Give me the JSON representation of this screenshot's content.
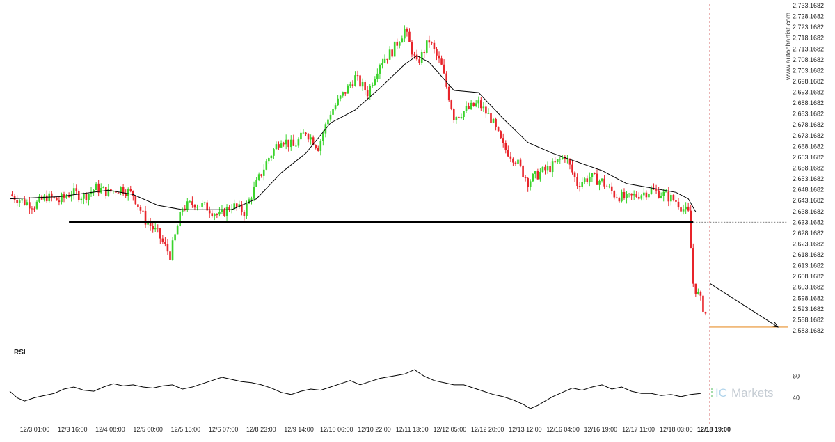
{
  "chart_data": [
    {
      "type": "candlestick",
      "title": "",
      "y_axis_ticks": [
        "2,733.1682",
        "2,728.1682",
        "2,723.1682",
        "2,718.1682",
        "2,713.1682",
        "2,708.1682",
        "2,703.1682",
        "2,698.1682",
        "2,693.1682",
        "2,688.1682",
        "2,683.1682",
        "2,678.1682",
        "2,673.1682",
        "2,668.1682",
        "2,663.1682",
        "2,658.1682",
        "2,653.1682",
        "2,648.1682",
        "2,643.1682",
        "2,638.1682",
        "2,633.1682",
        "2,628.1682",
        "2,623.1682",
        "2,618.1682",
        "2,613.1682",
        "2,608.1682",
        "2,603.1682",
        "2,598.1682",
        "2,593.1682",
        "2,588.1682",
        "2,583.1682"
      ],
      "ylim": [
        2583.1682,
        2733.1682
      ],
      "x_axis_ticks": [
        "12/3 01:00",
        "12/3 16:00",
        "12/4 08:00",
        "12/5 00:00",
        "12/5 15:00",
        "12/6 07:00",
        "12/8 23:00",
        "12/9 14:00",
        "12/10 06:00",
        "12/10 22:00",
        "12/11 13:00",
        "12/12 05:00",
        "12/12 20:00",
        "12/13 12:00",
        "12/16 04:00",
        "12/16 19:00",
        "12/17 11:00",
        "12/18 03:00",
        "12/18 19:00"
      ],
      "current_time_label": "12/18 19:00",
      "close_profile": [
        [
          0,
          2646
        ],
        [
          5,
          2643
        ],
        [
          10,
          2641
        ],
        [
          15,
          2645
        ],
        [
          20,
          2643
        ],
        [
          25,
          2647
        ],
        [
          30,
          2645
        ],
        [
          35,
          2649
        ],
        [
          40,
          2647
        ],
        [
          45,
          2649
        ],
        [
          50,
          2646
        ],
        [
          55,
          2634
        ],
        [
          60,
          2628
        ],
        [
          65,
          2618
        ],
        [
          70,
          2640
        ],
        [
          75,
          2642
        ],
        [
          80,
          2640
        ],
        [
          85,
          2636
        ],
        [
          90,
          2641
        ],
        [
          95,
          2638
        ],
        [
          100,
          2651
        ],
        [
          105,
          2663
        ],
        [
          110,
          2672
        ],
        [
          115,
          2668
        ],
        [
          120,
          2675
        ],
        [
          125,
          2668
        ],
        [
          130,
          2684
        ],
        [
          135,
          2692
        ],
        [
          140,
          2700
        ],
        [
          145,
          2693
        ],
        [
          150,
          2707
        ],
        [
          155,
          2712
        ],
        [
          160,
          2722
        ],
        [
          165,
          2706
        ],
        [
          170,
          2717
        ],
        [
          175,
          2705
        ],
        [
          180,
          2682
        ],
        [
          185,
          2685
        ],
        [
          190,
          2688
        ],
        [
          195,
          2681
        ],
        [
          200,
          2668
        ],
        [
          205,
          2662
        ],
        [
          210,
          2652
        ],
        [
          215,
          2656
        ],
        [
          220,
          2659
        ],
        [
          225,
          2664
        ],
        [
          230,
          2651
        ],
        [
          235,
          2654
        ],
        [
          240,
          2652
        ],
        [
          245,
          2646
        ],
        [
          250,
          2644
        ],
        [
          255,
          2646
        ],
        [
          260,
          2648
        ],
        [
          265,
          2646
        ],
        [
          270,
          2643
        ],
        [
          275,
          2637
        ],
        [
          277,
          2605
        ],
        [
          280,
          2597
        ],
        [
          282,
          2591
        ]
      ],
      "moving_average": [
        [
          0,
          2644
        ],
        [
          20,
          2645
        ],
        [
          40,
          2648
        ],
        [
          50,
          2646
        ],
        [
          60,
          2641
        ],
        [
          70,
          2639
        ],
        [
          80,
          2639
        ],
        [
          90,
          2639
        ],
        [
          100,
          2644
        ],
        [
          110,
          2656
        ],
        [
          120,
          2665
        ],
        [
          130,
          2679
        ],
        [
          140,
          2685
        ],
        [
          150,
          2695
        ],
        [
          160,
          2706
        ],
        [
          165,
          2710
        ],
        [
          170,
          2707
        ],
        [
          180,
          2694
        ],
        [
          190,
          2693
        ],
        [
          200,
          2681
        ],
        [
          210,
          2670
        ],
        [
          220,
          2665
        ],
        [
          230,
          2661
        ],
        [
          240,
          2657
        ],
        [
          250,
          2651
        ],
        [
          260,
          2649
        ],
        [
          270,
          2647
        ],
        [
          275,
          2644
        ],
        [
          278,
          2638
        ]
      ],
      "support_level": 2633.2,
      "support_range": [
        24,
        277
      ],
      "current_price_marker": 2633.2,
      "target_level": 2584.8,
      "projection_from": [
        277,
        2605
      ],
      "projection_to": [
        285,
        2584.8
      ],
      "colors": {
        "up": "#3ad32c",
        "down": "#e8242a",
        "line": "#000000",
        "target": "#e8912e"
      },
      "watermark": "www.autochartist.com"
    },
    {
      "type": "line",
      "title": "RSI",
      "y_axis_ticks": [
        "60",
        "40"
      ],
      "ylim": [
        28,
        70
      ],
      "values": [
        [
          0,
          46
        ],
        [
          3,
          40
        ],
        [
          6,
          37
        ],
        [
          10,
          40
        ],
        [
          14,
          42
        ],
        [
          18,
          44
        ],
        [
          22,
          48
        ],
        [
          26,
          50
        ],
        [
          30,
          47
        ],
        [
          34,
          46
        ],
        [
          38,
          50
        ],
        [
          42,
          53
        ],
        [
          46,
          51
        ],
        [
          50,
          52
        ],
        [
          54,
          50
        ],
        [
          58,
          49
        ],
        [
          62,
          51
        ],
        [
          66,
          52
        ],
        [
          70,
          48
        ],
        [
          74,
          50
        ],
        [
          78,
          53
        ],
        [
          82,
          56
        ],
        [
          86,
          59
        ],
        [
          90,
          57
        ],
        [
          94,
          55
        ],
        [
          98,
          54
        ],
        [
          102,
          52
        ],
        [
          106,
          49
        ],
        [
          110,
          45
        ],
        [
          114,
          43
        ],
        [
          118,
          46
        ],
        [
          122,
          48
        ],
        [
          126,
          47
        ],
        [
          130,
          50
        ],
        [
          134,
          53
        ],
        [
          138,
          56
        ],
        [
          142,
          52
        ],
        [
          146,
          55
        ],
        [
          150,
          58
        ],
        [
          155,
          60
        ],
        [
          160,
          62
        ],
        [
          164,
          66
        ],
        [
          168,
          60
        ],
        [
          172,
          56
        ],
        [
          176,
          54
        ],
        [
          180,
          52
        ],
        [
          184,
          52
        ],
        [
          188,
          49
        ],
        [
          192,
          46
        ],
        [
          196,
          43
        ],
        [
          200,
          41
        ],
        [
          204,
          38
        ],
        [
          208,
          34
        ],
        [
          211,
          30
        ],
        [
          214,
          33
        ],
        [
          217,
          37
        ],
        [
          220,
          41
        ],
        [
          224,
          45
        ],
        [
          228,
          49
        ],
        [
          232,
          47
        ],
        [
          236,
          50
        ],
        [
          240,
          52
        ],
        [
          244,
          48
        ],
        [
          248,
          50
        ],
        [
          252,
          46
        ],
        [
          256,
          44
        ],
        [
          260,
          44
        ],
        [
          264,
          42
        ],
        [
          268,
          43
        ],
        [
          272,
          41
        ],
        [
          276,
          43
        ],
        [
          280,
          44
        ]
      ],
      "colors": {
        "line": "#000000"
      }
    }
  ],
  "rsi_label": "RSI",
  "brand": {
    "prefix": "IC",
    "name": "Markets"
  }
}
